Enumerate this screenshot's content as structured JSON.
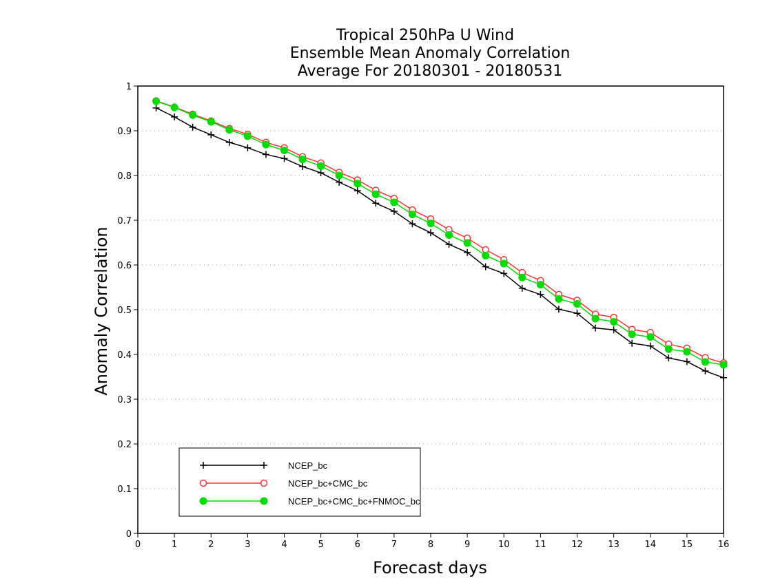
{
  "chart_data": {
    "type": "line",
    "title": [
      "Tropical 250hPa U Wind",
      "Ensemble Mean Anomaly Correlation",
      "Average For 20180301 - 20180531"
    ],
    "xlabel": "Forecast days",
    "ylabel": "Anomaly Correlation",
    "xlim": [
      0,
      16
    ],
    "ylim": [
      0,
      1
    ],
    "xticks": [
      "0",
      "1",
      "2",
      "3",
      "4",
      "5",
      "6",
      "7",
      "8",
      "9",
      "10",
      "11",
      "12",
      "13",
      "14",
      "15",
      "16"
    ],
    "yticks": [
      "0",
      "0.1",
      "0.2",
      "0.3",
      "0.4",
      "0.5",
      "0.6",
      "0.7",
      "0.8",
      "0.9",
      "1"
    ],
    "grid": "dotted horizontal",
    "legend_placement": "bottom-left",
    "x": [
      0.5,
      1,
      1.5,
      2,
      2.5,
      3,
      3.5,
      4,
      4.5,
      5,
      5.5,
      6,
      6.5,
      7,
      7.5,
      8,
      8.5,
      9,
      9.5,
      10,
      10.5,
      11,
      11.5,
      12,
      12.5,
      13,
      13.5,
      14,
      14.5,
      15,
      15.5,
      16
    ],
    "series": [
      {
        "name": "NCEP_bc",
        "color": "#000000",
        "marker": "plus",
        "values": [
          0.951,
          0.931,
          0.908,
          0.891,
          0.874,
          0.862,
          0.847,
          0.838,
          0.82,
          0.806,
          0.785,
          0.766,
          0.738,
          0.72,
          0.692,
          0.672,
          0.646,
          0.628,
          0.596,
          0.581,
          0.548,
          0.534,
          0.501,
          0.492,
          0.459,
          0.455,
          0.425,
          0.419,
          0.392,
          0.384,
          0.363,
          0.348
        ]
      },
      {
        "name": "NCEP_bc+CMC_bc",
        "color": "#ff3333",
        "marker": "open-circle",
        "values": [
          0.967,
          0.953,
          0.937,
          0.922,
          0.905,
          0.892,
          0.874,
          0.862,
          0.842,
          0.828,
          0.807,
          0.79,
          0.767,
          0.749,
          0.723,
          0.703,
          0.679,
          0.66,
          0.634,
          0.612,
          0.583,
          0.565,
          0.534,
          0.521,
          0.49,
          0.483,
          0.456,
          0.449,
          0.423,
          0.414,
          0.393,
          0.381
        ]
      },
      {
        "name": "NCEP_bc+CMC_bc+FNMOC_bc",
        "color": "#00dd00",
        "marker": "filled-circle",
        "values": [
          0.966,
          0.952,
          0.935,
          0.92,
          0.902,
          0.888,
          0.869,
          0.856,
          0.836,
          0.821,
          0.8,
          0.782,
          0.758,
          0.74,
          0.713,
          0.693,
          0.667,
          0.649,
          0.621,
          0.603,
          0.572,
          0.556,
          0.524,
          0.513,
          0.48,
          0.473,
          0.445,
          0.439,
          0.412,
          0.406,
          0.383,
          0.377
        ]
      }
    ]
  }
}
